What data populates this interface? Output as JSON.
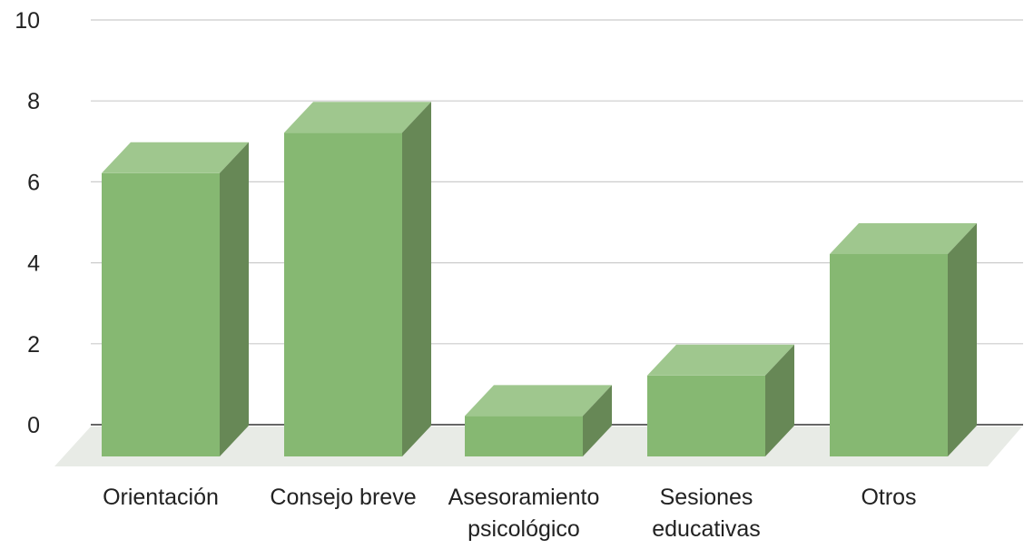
{
  "chart_data": {
    "type": "bar",
    "style": "3d",
    "categories": [
      [
        "Orientación"
      ],
      [
        "Consejo breve"
      ],
      [
        "Asesoramiento",
        "psicológico"
      ],
      [
        "Sesiones",
        "educativas"
      ],
      [
        "Otros"
      ]
    ],
    "values": [
      7,
      8,
      1,
      2,
      5
    ],
    "ylim": [
      0,
      10
    ],
    "yticks": [
      "0",
      "2",
      "4",
      "6",
      "8",
      "10"
    ],
    "grid": true,
    "legend": false,
    "colors": {
      "bar_front": "#86b872",
      "bar_top": "#9fc78e",
      "bar_side": "#678856",
      "floor": "#e8ebe6",
      "grid": "#cccccc",
      "baseline": "#333333"
    }
  }
}
